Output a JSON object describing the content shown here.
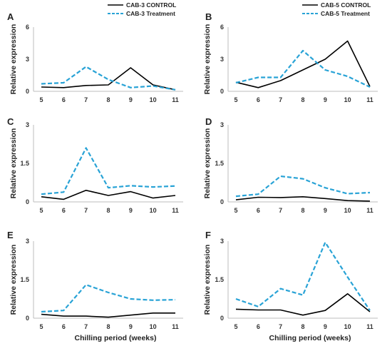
{
  "figure": {
    "x_axis_title": "Chilling period (weeks)"
  },
  "chart_data": [
    {
      "panel": "A",
      "type": "line",
      "ylabel": "Relative expression",
      "xlabel": "",
      "x": [
        5,
        6,
        7,
        8,
        9,
        10,
        11
      ],
      "ylim": [
        0,
        6
      ],
      "yticks": [
        "0",
        "3",
        "6"
      ],
      "legend": "top-right",
      "series": [
        {
          "name": "CAB-3 CONTROL",
          "color": "#000000",
          "dashed": false,
          "values": [
            0.4,
            0.35,
            0.55,
            0.6,
            2.2,
            0.6,
            0.15
          ]
        },
        {
          "name": "CAB-3 Treatment",
          "color": "#29A3D6",
          "dashed": true,
          "values": [
            0.7,
            0.8,
            2.3,
            1.1,
            0.35,
            0.5,
            0.15
          ]
        }
      ]
    },
    {
      "panel": "B",
      "type": "line",
      "ylabel": "Relative expression",
      "xlabel": "",
      "x": [
        5,
        6,
        7,
        8,
        9,
        10,
        11
      ],
      "ylim": [
        0,
        6
      ],
      "yticks": [
        "0",
        "3",
        "6"
      ],
      "legend": "top-right",
      "series": [
        {
          "name": "CAB-5 CONTROL",
          "color": "#000000",
          "dashed": false,
          "values": [
            0.85,
            0.35,
            1.0,
            2.0,
            3.0,
            4.7,
            0.45
          ]
        },
        {
          "name": "CAB-5 Treatment",
          "color": "#29A3D6",
          "dashed": true,
          "values": [
            0.8,
            1.3,
            1.3,
            3.8,
            2.0,
            1.4,
            0.4
          ]
        }
      ]
    },
    {
      "panel": "C",
      "type": "line",
      "ylabel": "Relative expression",
      "xlabel": "",
      "x": [
        5,
        6,
        7,
        8,
        9,
        10,
        11
      ],
      "ylim": [
        0,
        3
      ],
      "yticks": [
        "0",
        "1.5",
        "3"
      ],
      "series": [
        {
          "name": "",
          "color": "#000000",
          "dashed": false,
          "values": [
            0.2,
            0.1,
            0.45,
            0.25,
            0.4,
            0.15,
            0.25
          ]
        },
        {
          "name": "",
          "color": "#29A3D6",
          "dashed": true,
          "values": [
            0.3,
            0.38,
            2.1,
            0.55,
            0.63,
            0.58,
            0.62
          ]
        }
      ]
    },
    {
      "panel": "D",
      "type": "line",
      "ylabel": "Relative expression",
      "xlabel": "",
      "x": [
        5,
        6,
        7,
        8,
        9,
        10,
        11
      ],
      "ylim": [
        0,
        3
      ],
      "yticks": [
        "0",
        "1.5",
        "3"
      ],
      "series": [
        {
          "name": "",
          "color": "#000000",
          "dashed": false,
          "values": [
            0.08,
            0.18,
            0.17,
            0.2,
            0.13,
            0.05,
            0.03
          ]
        },
        {
          "name": "",
          "color": "#29A3D6",
          "dashed": true,
          "values": [
            0.22,
            0.3,
            1.0,
            0.9,
            0.55,
            0.32,
            0.36
          ]
        }
      ]
    },
    {
      "panel": "E",
      "type": "line",
      "ylabel": "Relative expression",
      "xlabel": "Chilling period (weeks)",
      "x": [
        5,
        6,
        7,
        8,
        9,
        10,
        11
      ],
      "ylim": [
        0,
        3
      ],
      "yticks": [
        "0",
        "1.5",
        "3"
      ],
      "series": [
        {
          "name": "",
          "color": "#000000",
          "dashed": false,
          "values": [
            0.15,
            0.08,
            0.08,
            0.04,
            0.12,
            0.2,
            0.2
          ]
        },
        {
          "name": "",
          "color": "#29A3D6",
          "dashed": true,
          "values": [
            0.25,
            0.3,
            1.3,
            1.0,
            0.75,
            0.7,
            0.72
          ]
        }
      ]
    },
    {
      "panel": "F",
      "type": "line",
      "ylabel": "Relative expression",
      "xlabel": "Chilling period (weeks)",
      "x": [
        5,
        6,
        7,
        8,
        9,
        10,
        11
      ],
      "ylim": [
        0,
        3
      ],
      "yticks": [
        "0",
        "1.5",
        "3"
      ],
      "series": [
        {
          "name": "",
          "color": "#000000",
          "dashed": false,
          "values": [
            0.35,
            0.32,
            0.32,
            0.12,
            0.3,
            0.95,
            0.25
          ]
        },
        {
          "name": "",
          "color": "#29A3D6",
          "dashed": true,
          "values": [
            0.75,
            0.45,
            1.15,
            0.9,
            2.95,
            1.6,
            0.3
          ]
        }
      ]
    }
  ]
}
